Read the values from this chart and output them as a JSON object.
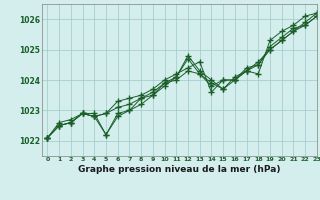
{
  "xlabel": "Graphe pression niveau de la mer (hPa)",
  "xlim": [
    -0.5,
    23
  ],
  "ylim": [
    1021.5,
    1026.5
  ],
  "yticks": [
    1022,
    1023,
    1024,
    1025,
    1026
  ],
  "xticks": [
    0,
    1,
    2,
    3,
    4,
    5,
    6,
    7,
    8,
    9,
    10,
    11,
    12,
    13,
    14,
    15,
    16,
    17,
    18,
    19,
    20,
    21,
    22,
    23
  ],
  "background_color": "#d4eeee",
  "grid_color": "#a0c8c8",
  "line_color": "#1a5e28",
  "series": [
    [
      1022.1,
      1022.6,
      1022.7,
      1022.9,
      1022.9,
      1022.2,
      1022.9,
      1023.0,
      1023.4,
      1023.5,
      1023.8,
      1024.1,
      1024.8,
      1024.3,
      1024.0,
      1023.7,
      1024.1,
      1024.3,
      1024.2,
      1025.3,
      1025.6,
      1025.8,
      1026.1,
      1026.2
    ],
    [
      1022.1,
      1022.5,
      1022.6,
      1022.9,
      1022.8,
      1022.9,
      1023.3,
      1023.4,
      1023.5,
      1023.7,
      1024.0,
      1024.2,
      1024.4,
      1024.6,
      1023.6,
      1024.0,
      1024.0,
      1024.4,
      1024.5,
      1025.1,
      1025.4,
      1025.7,
      1025.8,
      1026.1
    ],
    [
      1022.1,
      1022.5,
      1022.6,
      1022.9,
      1022.8,
      1022.9,
      1023.1,
      1023.2,
      1023.4,
      1023.6,
      1023.9,
      1024.0,
      1024.3,
      1024.2,
      1023.8,
      1024.0,
      1024.0,
      1024.3,
      1024.5,
      1025.0,
      1025.3,
      1025.6,
      1025.8,
      1026.1
    ],
    [
      1022.1,
      1022.5,
      1022.6,
      1022.9,
      1022.8,
      1022.2,
      1022.8,
      1023.0,
      1023.2,
      1023.5,
      1023.9,
      1024.1,
      1024.7,
      1024.2,
      1023.9,
      1023.7,
      1024.0,
      1024.3,
      1024.6,
      1025.0,
      1025.3,
      1025.6,
      1025.9,
      1026.2
    ]
  ],
  "figsize": [
    3.2,
    2.0
  ],
  "dpi": 100
}
